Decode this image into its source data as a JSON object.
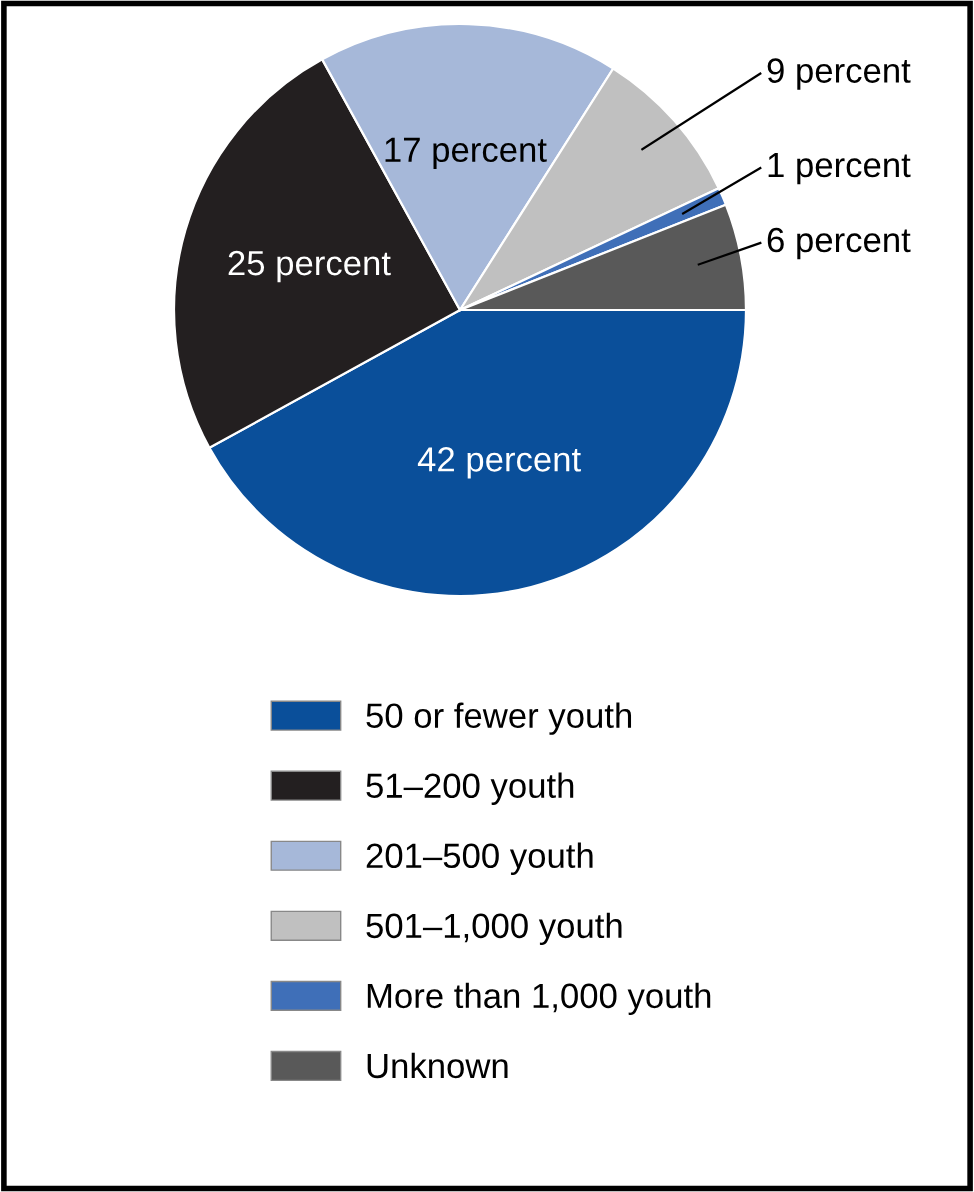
{
  "chart_data": {
    "type": "pie",
    "categories": [
      "50 or fewer youth",
      "51–200 youth",
      "201–500 youth",
      "501–1,000 youth",
      "More than 1,000 youth",
      "Unknown"
    ],
    "values": [
      42,
      25,
      17,
      9,
      1,
      6
    ],
    "colors": [
      "#0a4f9a",
      "#231f20",
      "#a6b8d9",
      "#c0c0c0",
      "#3f6fb8",
      "#595959"
    ],
    "value_labels": [
      "42 percent",
      "25 percent",
      "17 percent",
      "9 percent",
      "1 percent",
      "6 percent"
    ],
    "legend": "bottom"
  }
}
